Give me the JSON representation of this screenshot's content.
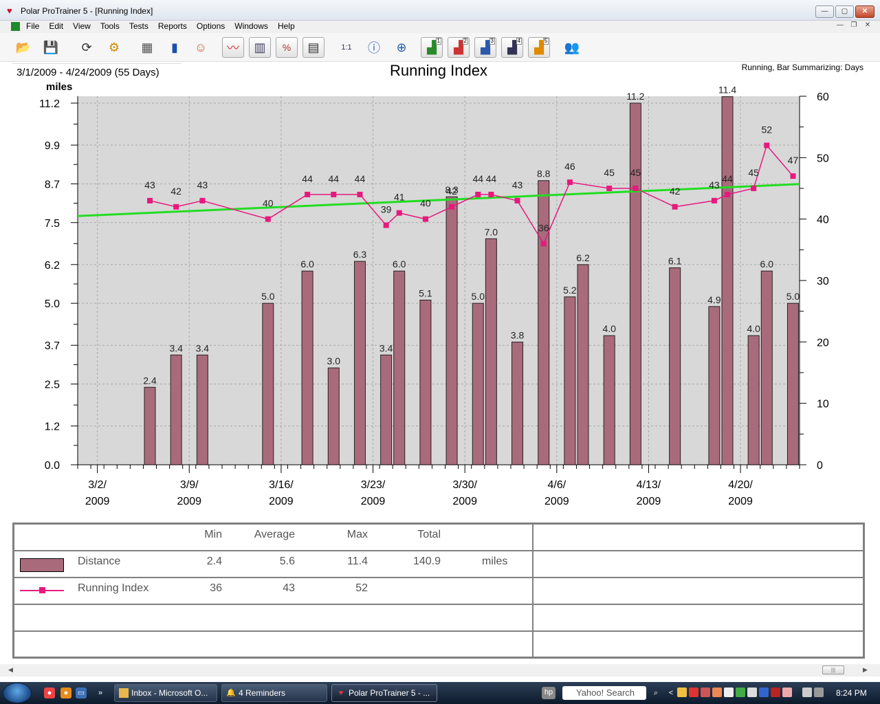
{
  "window": {
    "title": "Polar ProTrainer 5 - [Running Index]",
    "minimize": "—",
    "maximize": "▢",
    "close": "✕"
  },
  "menu": [
    "File",
    "Edit",
    "View",
    "Tools",
    "Tests",
    "Reports",
    "Options",
    "Windows",
    "Help"
  ],
  "mdi_controls": [
    "—",
    "❐",
    "✕"
  ],
  "toolbar": {
    "icons": [
      "open-folder-icon",
      "save-disk-icon",
      "sync-icon",
      "settings-gear-icon",
      "calendar-icon",
      "diary-book-icon",
      "user-chat-icon",
      "line-graph-icon",
      "bar-graph-icon",
      "percentage-graph-icon",
      "table-graph-icon",
      "zoom-1to1-icon",
      "info-graph-icon",
      "compass-info-icon",
      "chart-1-icon",
      "chart-2-icon",
      "chart-3-icon",
      "chart-4-icon",
      "chart-5-icon",
      "users-icon"
    ],
    "chart_numbers": [
      "1",
      "2",
      "3",
      "4",
      "5"
    ],
    "zoom_label": "1:1"
  },
  "header": {
    "date_range": "3/1/2009 - 4/24/2009 (55 Days)",
    "summarizing": "Running, Bar Summarizing: Days"
  },
  "chart_data": {
    "type": "bar",
    "title": "Running Index",
    "ylabel": "miles",
    "ylim": [
      0,
      11.2
    ],
    "y2lim": [
      0,
      60
    ],
    "y_ticks": [
      "11.2",
      "9.9",
      "8.7",
      "7.5",
      "6.2",
      "5.0",
      "3.7",
      "2.5",
      "1.2",
      "0.0"
    ],
    "y2_ticks": [
      "60",
      "50",
      "40",
      "30",
      "20",
      "10",
      "0"
    ],
    "x_ticks": [
      {
        "line1": "3/2/",
        "line2": "2009",
        "day": 1
      },
      {
        "line1": "3/9/",
        "line2": "2009",
        "day": 8
      },
      {
        "line1": "3/16/",
        "line2": "2009",
        "day": 15
      },
      {
        "line1": "3/23/",
        "line2": "2009",
        "day": 22
      },
      {
        "line1": "3/30/",
        "line2": "2009",
        "day": 29
      },
      {
        "line1": "4/6/",
        "line2": "2009",
        "day": 36
      },
      {
        "line1": "4/13/",
        "line2": "2009",
        "day": 43
      },
      {
        "line1": "4/20/",
        "line2": "2009",
        "day": 50
      }
    ],
    "grid": true,
    "bars": [
      {
        "day": 5,
        "value": 2.4,
        "label": "2.4"
      },
      {
        "day": 7,
        "value": 3.4,
        "label": "3.4"
      },
      {
        "day": 9,
        "value": 3.4,
        "label": "3.4"
      },
      {
        "day": 14,
        "value": 5.0,
        "label": "5.0"
      },
      {
        "day": 17,
        "value": 6.0,
        "label": "6.0"
      },
      {
        "day": 19,
        "value": 3.0,
        "label": "3.0"
      },
      {
        "day": 21,
        "value": 6.3,
        "label": "6.3"
      },
      {
        "day": 23,
        "value": 3.4,
        "label": "3.4"
      },
      {
        "day": 24,
        "value": 6.0,
        "label": "6.0"
      },
      {
        "day": 26,
        "value": 5.1,
        "label": "5.1"
      },
      {
        "day": 28,
        "value": 8.3,
        "label": "8.3"
      },
      {
        "day": 30,
        "value": 5.0,
        "label": "5.0"
      },
      {
        "day": 31,
        "value": 7.0,
        "label": "7.0"
      },
      {
        "day": 33,
        "value": 3.8,
        "label": "3.8"
      },
      {
        "day": 35,
        "value": 8.8,
        "label": "8.8"
      },
      {
        "day": 37,
        "value": 5.2,
        "label": "5.2"
      },
      {
        "day": 38,
        "value": 6.2,
        "label": "6.2"
      },
      {
        "day": 40,
        "value": 4.0,
        "label": "4.0"
      },
      {
        "day": 42,
        "value": 11.2,
        "label": "11.2"
      },
      {
        "day": 45,
        "value": 6.1,
        "label": "6.1"
      },
      {
        "day": 48,
        "value": 4.9,
        "label": "4.9"
      },
      {
        "day": 49,
        "value": 11.4,
        "label": "11.4"
      },
      {
        "day": 51,
        "value": 4.0,
        "label": "4.0"
      },
      {
        "day": 52,
        "value": 6.0,
        "label": "6.0"
      },
      {
        "day": 54,
        "value": 5.0,
        "label": "5.0"
      }
    ],
    "running_index": [
      {
        "day": 5,
        "value": 43,
        "label": "43"
      },
      {
        "day": 7,
        "value": 42,
        "label": "42"
      },
      {
        "day": 9,
        "value": 43,
        "label": "43"
      },
      {
        "day": 14,
        "value": 40,
        "label": "40"
      },
      {
        "day": 17,
        "value": 44,
        "label": "44"
      },
      {
        "day": 19,
        "value": 44,
        "label": "44"
      },
      {
        "day": 21,
        "value": 44,
        "label": "44"
      },
      {
        "day": 23,
        "value": 39,
        "label": "39"
      },
      {
        "day": 24,
        "value": 41,
        "label": "41"
      },
      {
        "day": 26,
        "value": 40,
        "label": "40"
      },
      {
        "day": 28,
        "value": 42,
        "label": "42"
      },
      {
        "day": 30,
        "value": 44,
        "label": "44"
      },
      {
        "day": 31,
        "value": 44,
        "label": "44"
      },
      {
        "day": 33,
        "value": 43,
        "label": "43"
      },
      {
        "day": 35,
        "value": 36,
        "label": "36"
      },
      {
        "day": 37,
        "value": 46,
        "label": "46"
      },
      {
        "day": 40,
        "value": 45,
        "label": "45"
      },
      {
        "day": 42,
        "value": 45,
        "label": "45"
      },
      {
        "day": 45,
        "value": 42,
        "label": "42"
      },
      {
        "day": 48,
        "value": 43,
        "label": "43"
      },
      {
        "day": 49,
        "value": 44,
        "label": "44"
      },
      {
        "day": 51,
        "value": 45,
        "label": "45"
      },
      {
        "day": 52,
        "value": 52,
        "label": "52"
      },
      {
        "day": 54,
        "value": 47,
        "label": "47"
      }
    ],
    "trend": {
      "start_day": 0,
      "start_value": 40.5,
      "end_day": 55,
      "end_value": 45.7
    },
    "colors": {
      "bar": "#a96b7c",
      "index": "#e6197d",
      "trend": "#22dd22",
      "plot_bg": "#d8d8d8"
    }
  },
  "summary": {
    "headers": {
      "min": "Min",
      "average": "Average",
      "max": "Max",
      "total": "Total"
    },
    "rows": [
      {
        "name": "Distance",
        "min": "2.4",
        "average": "5.6",
        "max": "11.4",
        "total": "140.9",
        "unit": "miles"
      },
      {
        "name": "Running Index",
        "min": "36",
        "average": "43",
        "max": "52",
        "total": "",
        "unit": ""
      }
    ]
  },
  "taskbar": {
    "tasks": [
      {
        "label": "Inbox - Microsoft O...",
        "icon": "outlook-icon"
      },
      {
        "label": "4 Reminders",
        "icon": "bell-icon"
      },
      {
        "label": "Polar ProTrainer 5 - ...",
        "icon": "polar-heart-icon"
      }
    ],
    "search_placeholder": "Yahoo! Search",
    "clock": "8:24 PM",
    "chevron": "»",
    "tray_arrow": "<"
  }
}
